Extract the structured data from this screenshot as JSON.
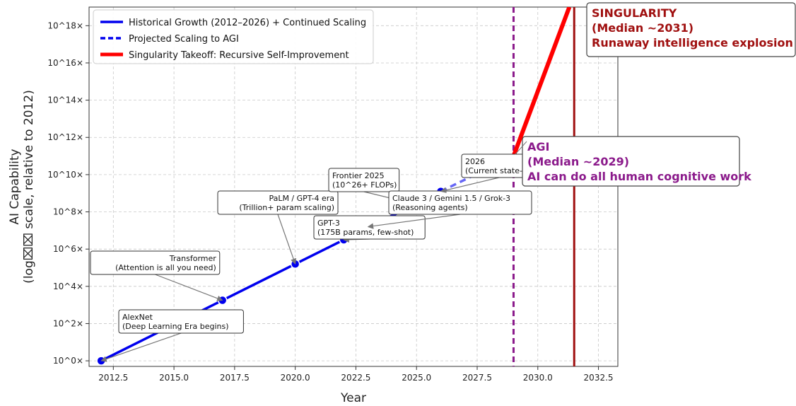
{
  "chart_data": {
    "type": "line",
    "xlabel": "Year",
    "ylabel_line1": "AI Capability",
    "ylabel_line2": "(log⌧⌧ scale, relative to 2012)",
    "xlim": [
      2011.5,
      2033.3
    ],
    "ylim": [
      -0.3,
      19.0
    ],
    "x_ticks": [
      2012.5,
      2015.0,
      2017.5,
      2020.0,
      2022.5,
      2025.0,
      2027.5,
      2030.0,
      2032.5
    ],
    "x_tick_labels": [
      "2012.5",
      "2015.0",
      "2017.5",
      "2020.0",
      "2022.5",
      "2025.0",
      "2027.5",
      "2030.0",
      "2032.5"
    ],
    "y_ticks": [
      0,
      2,
      4,
      6,
      8,
      10,
      12,
      14,
      16,
      18
    ],
    "y_tick_labels": [
      "10^0×",
      "10^2×",
      "10^4×",
      "10^6×",
      "10^8×",
      "10^10×",
      "10^12×",
      "10^14×",
      "10^16×",
      "10^18×"
    ],
    "grid": true,
    "legend_position": "top-left",
    "series": [
      {
        "name": "Historical Growth (2012–2026) + Continued Scaling",
        "style": "solid",
        "color": "#0000ee",
        "x": [
          2012,
          2017,
          2020,
          2022,
          2023,
          2025,
          2026
        ],
        "y": [
          0.0,
          3.25,
          5.2,
          6.5,
          7.2,
          8.4,
          9.1
        ]
      },
      {
        "name": "Projected Scaling to AGI",
        "style": "dashed",
        "color": "#0000ee",
        "x": [
          2026,
          2029
        ],
        "y": [
          9.1,
          11.0
        ]
      },
      {
        "name": "Singularity Takeoff: Recursive Self-Improvement",
        "style": "solid",
        "color": "#ff0000",
        "x": [
          2029,
          2031.3
        ],
        "y": [
          11.0,
          19.0
        ]
      }
    ],
    "markers": [
      {
        "x": 2012,
        "y": 0.0
      },
      {
        "x": 2017,
        "y": 3.25
      },
      {
        "x": 2020,
        "y": 5.2
      },
      {
        "x": 2022,
        "y": 6.5
      },
      {
        "x": 2023,
        "y": 7.2
      },
      {
        "x": 2025,
        "y": 8.4
      },
      {
        "x": 2026,
        "y": 9.1
      }
    ],
    "vlines": [
      {
        "x": 2029,
        "color": "#8b1a8b",
        "style": "dashed"
      },
      {
        "x": 2031.5,
        "color": "#a01010",
        "style": "solid"
      }
    ],
    "annotations": [
      {
        "lines": [
          "AlexNet",
          "(Deep Learning Era begins)"
        ],
        "target_x": 2012,
        "target_y": 0.0,
        "align": "left"
      },
      {
        "lines": [
          "Transformer",
          "(Attention is all you need)"
        ],
        "target_x": 2017,
        "target_y": 3.25,
        "align": "right"
      },
      {
        "lines": [
          "PaLM / GPT-4 era",
          "(Trillion+ param scaling)"
        ],
        "target_x": 2020,
        "target_y": 5.2,
        "align": "right"
      },
      {
        "lines": [
          "GPT-3",
          "(175B params, few-shot)"
        ],
        "target_x": 2022,
        "target_y": 6.5,
        "align": "left"
      },
      {
        "lines": [
          "Frontier 2025",
          "(10^26+ FLOPs)"
        ],
        "target_x": 2025,
        "target_y": 8.4,
        "align": "left"
      },
      {
        "lines": [
          "Claude 3 / Gemini 1.5 / Grok-3",
          "(Reasoning agents)"
        ],
        "target_x": 2023,
        "target_y": 7.2,
        "align": "left"
      },
      {
        "lines": [
          "2026",
          "(Current state-"
        ],
        "target_x": 2026,
        "target_y": 9.1,
        "align": "left"
      }
    ],
    "callouts": [
      {
        "lines": [
          "AGI",
          "(Median ~2029)",
          "AI can do all human cognitive work"
        ],
        "color": "#8b1a8b"
      },
      {
        "lines": [
          "SINGULARITY",
          "(Median ~2031)",
          "Runaway intelligence explosion"
        ],
        "color": "#a01010"
      }
    ]
  }
}
